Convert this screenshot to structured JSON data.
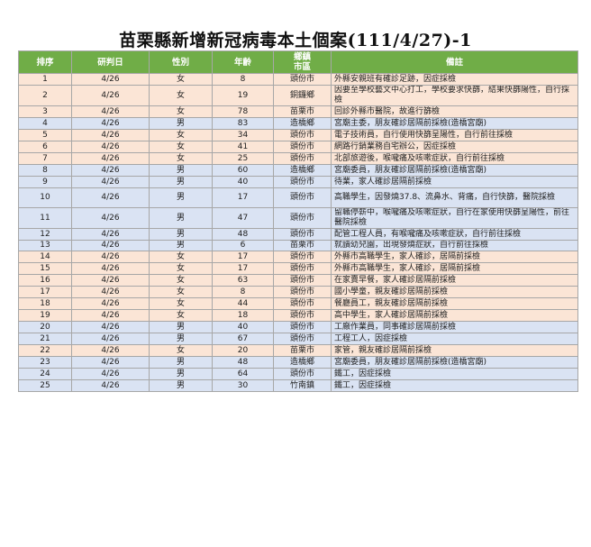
{
  "title": "苗栗縣新增新冠病毒本土個案(111/4/27)-1",
  "colors": {
    "header": "#70ad47",
    "female": "#fbe5d6",
    "male": "#dae3f3"
  },
  "columns": [
    "排序",
    "研判日",
    "性別",
    "年齡",
    "鄉鎮\n市區",
    "備註"
  ],
  "rows": [
    {
      "no": "1",
      "date": "4/26",
      "sex": "女",
      "age": "8",
      "town": "頭份市",
      "note": "外縣安親班有確診足跡，因症採檢"
    },
    {
      "no": "2",
      "date": "4/26",
      "sex": "女",
      "age": "19",
      "town": "銅鑼鄉",
      "note": "因要至學校藝文中心打工，學校要求快篩，結果快篩陽性，自行採檢"
    },
    {
      "no": "3",
      "date": "4/26",
      "sex": "女",
      "age": "78",
      "town": "苗栗市",
      "note": "回診外縣市醫院，故進行篩檢"
    },
    {
      "no": "4",
      "date": "4/26",
      "sex": "男",
      "age": "83",
      "town": "造橋鄉",
      "note": "宮廟主委，朋友確診居隔前採檢(造橋宮廟)"
    },
    {
      "no": "5",
      "date": "4/26",
      "sex": "女",
      "age": "34",
      "town": "頭份市",
      "note": "電子技術員，自行使用快篩呈陽性，自行前往採檢"
    },
    {
      "no": "6",
      "date": "4/26",
      "sex": "女",
      "age": "41",
      "town": "頭份市",
      "note": "網路行銷業務自宅辦公，因症採檢"
    },
    {
      "no": "7",
      "date": "4/26",
      "sex": "女",
      "age": "25",
      "town": "頭份市",
      "note": "北部旅遊後，喉嚨痛及咳嗽症狀，自行前往採檢"
    },
    {
      "no": "8",
      "date": "4/26",
      "sex": "男",
      "age": "60",
      "town": "造橋鄉",
      "note": "宮廟委員，朋友確診居隔前採檢(造橋宮廟)"
    },
    {
      "no": "9",
      "date": "4/26",
      "sex": "男",
      "age": "40",
      "town": "頭份市",
      "note": "待業，家人確診居隔前採檢"
    },
    {
      "no": "10",
      "date": "4/26",
      "sex": "男",
      "age": "17",
      "town": "頭份市",
      "note": "高職學生，因發燒37.8、流鼻水、背痛，自行快篩，醫院採檢"
    },
    {
      "no": "11",
      "date": "4/26",
      "sex": "男",
      "age": "47",
      "town": "頭份市",
      "note": "留職停薪中，喉嚨痛及咳嗽症狀，自行在家使用快篩呈陽性，前往醫院採檢"
    },
    {
      "no": "12",
      "date": "4/26",
      "sex": "男",
      "age": "48",
      "town": "頭份市",
      "note": "配管工程人員，有喉嚨痛及咳嗽症狀，自行前往採檢"
    },
    {
      "no": "13",
      "date": "4/26",
      "sex": "男",
      "age": "6",
      "town": "苗栗市",
      "note": "就讀幼兒園，出現發燒症狀，自行前往採檢"
    },
    {
      "no": "14",
      "date": "4/26",
      "sex": "女",
      "age": "17",
      "town": "頭份市",
      "note": "外縣市高職學生，家人確診，居隔前採檢"
    },
    {
      "no": "15",
      "date": "4/26",
      "sex": "女",
      "age": "17",
      "town": "頭份市",
      "note": "外縣市高職學生，家人確診，居隔前採檢"
    },
    {
      "no": "16",
      "date": "4/26",
      "sex": "女",
      "age": "63",
      "town": "頭份市",
      "note": "在家賣早餐，家人確診居隔前採檢"
    },
    {
      "no": "17",
      "date": "4/26",
      "sex": "女",
      "age": "8",
      "town": "頭份市",
      "note": "國小學童，親友確診居隔前採檢"
    },
    {
      "no": "18",
      "date": "4/26",
      "sex": "女",
      "age": "44",
      "town": "頭份市",
      "note": "餐廳員工，親友確診居隔前採檢"
    },
    {
      "no": "19",
      "date": "4/26",
      "sex": "女",
      "age": "18",
      "town": "頭份市",
      "note": "高中學生，家人確診居隔前採檢"
    },
    {
      "no": "20",
      "date": "4/26",
      "sex": "男",
      "age": "40",
      "town": "頭份市",
      "note": "工廠作業員，同事確診居隔前採檢"
    },
    {
      "no": "21",
      "date": "4/26",
      "sex": "男",
      "age": "67",
      "town": "頭份市",
      "note": "工程工人，因症採檢"
    },
    {
      "no": "22",
      "date": "4/26",
      "sex": "女",
      "age": "20",
      "town": "苗栗市",
      "note": "家管，親友確診居隔前採檢"
    },
    {
      "no": "23",
      "date": "4/26",
      "sex": "男",
      "age": "48",
      "town": "造橋鄉",
      "note": "宮廟委員，朋友確診居隔前採檢(造橋宮廟)"
    },
    {
      "no": "24",
      "date": "4/26",
      "sex": "男",
      "age": "64",
      "town": "頭份市",
      "note": "鐵工，因症採檢"
    },
    {
      "no": "25",
      "date": "4/26",
      "sex": "男",
      "age": "30",
      "town": "竹南鎮",
      "note": "鐵工，因症採檢"
    }
  ]
}
